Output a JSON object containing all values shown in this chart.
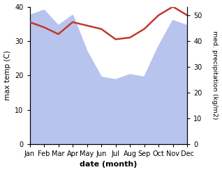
{
  "months": [
    "Jan",
    "Feb",
    "Mar",
    "Apr",
    "May",
    "Jun",
    "Jul",
    "Aug",
    "Sep",
    "Oct",
    "Nov",
    "Dec"
  ],
  "max_temp": [
    35.5,
    34.0,
    32.0,
    35.5,
    34.5,
    33.5,
    30.5,
    31.0,
    33.5,
    37.5,
    40.0,
    37.5
  ],
  "precipitation": [
    50.0,
    52.0,
    46.0,
    50.0,
    36.0,
    26.0,
    25.0,
    27.0,
    26.0,
    38.0,
    48.0,
    46.0
  ],
  "temp_color": "#c0392b",
  "precip_fill_color": "#b8c4ee",
  "temp_ylim": [
    0,
    40
  ],
  "precip_ylim": [
    0,
    53.33
  ],
  "xlabel": "date (month)",
  "ylabel_left": "max temp (C)",
  "ylabel_right": "med. precipitation (kg/m2)",
  "background_color": "#ffffff"
}
